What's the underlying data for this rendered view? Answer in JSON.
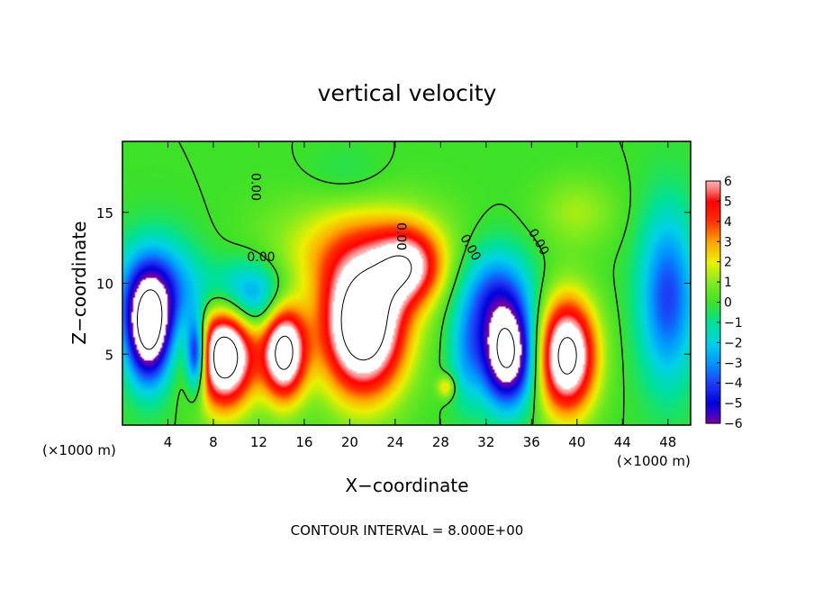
{
  "chart_data": {
    "type": "heatmap",
    "title": "vertical velocity",
    "xlabel": "X−coordinate",
    "ylabel": "Z−coordinate",
    "x_unit_left": "(×1000 m)",
    "x_unit_right": "(×1000 m)",
    "footer": "CONTOUR INTERVAL = 8.000E+00",
    "xlim": [
      0,
      50
    ],
    "ylim": [
      0,
      20
    ],
    "x_ticks": [
      {
        "value": 4,
        "label": "4"
      },
      {
        "value": 8,
        "label": "8"
      },
      {
        "value": 12,
        "label": "12"
      },
      {
        "value": 16,
        "label": "16"
      },
      {
        "value": 20,
        "label": "20"
      },
      {
        "value": 24,
        "label": "24"
      },
      {
        "value": 28,
        "label": "28"
      },
      {
        "value": 32,
        "label": "32"
      },
      {
        "value": 36,
        "label": "36"
      },
      {
        "value": 40,
        "label": "40"
      },
      {
        "value": 44,
        "label": "44"
      },
      {
        "value": 48,
        "label": "48"
      }
    ],
    "y_ticks": [
      {
        "value": 5,
        "label": "5"
      },
      {
        "value": 10,
        "label": "10"
      },
      {
        "value": 15,
        "label": "15"
      }
    ],
    "colorbar": {
      "range": [
        -6,
        6
      ],
      "labels": [
        {
          "value": 6,
          "label": "6"
        },
        {
          "value": 5,
          "label": "5"
        },
        {
          "value": 4,
          "label": "4"
        },
        {
          "value": 3,
          "label": "3"
        },
        {
          "value": 2,
          "label": "2"
        },
        {
          "value": 1,
          "label": "1"
        },
        {
          "value": 0,
          "label": "0"
        },
        {
          "value": -1,
          "label": "−1"
        },
        {
          "value": -2,
          "label": "−2"
        },
        {
          "value": -3,
          "label": "−3"
        },
        {
          "value": -4,
          "label": "−4"
        },
        {
          "value": -5,
          "label": "−5"
        },
        {
          "value": -6,
          "label": "−6"
        }
      ]
    },
    "contour_labels": [
      {
        "x": 12.2,
        "y": 11.8,
        "text": "0.00",
        "rot": 0
      },
      {
        "x": 11.7,
        "y": 16.8,
        "text": "0.00",
        "rot": 90
      },
      {
        "x": 24.5,
        "y": 13.3,
        "text": "0.00",
        "rot": 90
      },
      {
        "x": 30.6,
        "y": 12.5,
        "text": "0.00",
        "rot": 60
      },
      {
        "x": 36.6,
        "y": 12.9,
        "text": "0.00",
        "rot": 60
      }
    ],
    "cells": [
      {
        "x": 2.3,
        "y": 6.6,
        "rx": 1.9,
        "ry": 3.6,
        "v": -8
      },
      {
        "x": 6.5,
        "y": 5.0,
        "rx": 0.9,
        "ry": 2.6,
        "v": -7
      },
      {
        "x": 9.0,
        "y": 5.0,
        "rx": 2.5,
        "ry": 3.6,
        "v": 10
      },
      {
        "x": 14.2,
        "y": 5.2,
        "rx": 1.9,
        "ry": 3.3,
        "v": 9
      },
      {
        "x": 21.2,
        "y": 6.8,
        "rx": 3.6,
        "ry": 4.6,
        "v": 10
      },
      {
        "x": 21.0,
        "y": 12.0,
        "rx": 7.5,
        "ry": 3.8,
        "v": 3
      },
      {
        "x": 25.2,
        "y": 11.2,
        "rx": 2.8,
        "ry": 2.6,
        "v": 5
      },
      {
        "x": 33.9,
        "y": 4.8,
        "rx": 2.3,
        "ry": 3.4,
        "v": -8
      },
      {
        "x": 39.1,
        "y": 4.9,
        "rx": 2.5,
        "ry": 3.9,
        "v": 9
      },
      {
        "x": 28.5,
        "y": 2.7,
        "rx": 0.8,
        "ry": 0.8,
        "v": 2.5
      },
      {
        "x": 3.0,
        "y": 9.5,
        "rx": 3.5,
        "ry": 3.5,
        "v": -4
      },
      {
        "x": 11.0,
        "y": 9.0,
        "rx": 3.8,
        "ry": 2.5,
        "v": -4
      },
      {
        "x": 32.8,
        "y": 9.0,
        "rx": 3.2,
        "ry": 3.5,
        "v": -4
      },
      {
        "x": 48.0,
        "y": 9.0,
        "rx": 2.5,
        "ry": 6.0,
        "v": -4
      },
      {
        "x": 30.2,
        "y": 4.8,
        "rx": 1.5,
        "ry": 3.5,
        "v": -2
      },
      {
        "x": 19.8,
        "y": 17.5,
        "rx": 3.5,
        "ry": 2.0,
        "v": -0.6
      },
      {
        "x": 40.0,
        "y": 15.0,
        "rx": 3.5,
        "ry": 2.5,
        "v": 1.3
      }
    ]
  }
}
